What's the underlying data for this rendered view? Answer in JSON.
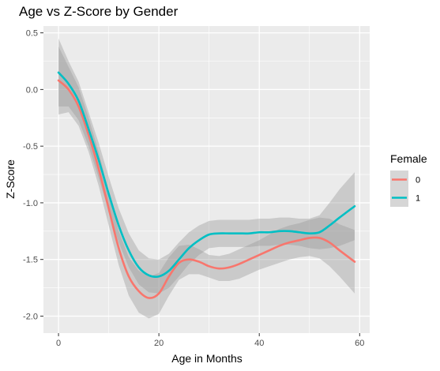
{
  "chart_data": {
    "type": "line",
    "title": "Age vs Z-Score by Gender",
    "xlabel": "Age in Months",
    "ylabel": "Z-Score",
    "xlim": [
      -3,
      62
    ],
    "ylim": [
      -2.15,
      0.56
    ],
    "x_ticks": [
      0,
      20,
      40,
      60
    ],
    "x_tick_labels": [
      "0",
      "20",
      "40",
      "60"
    ],
    "y_ticks": [
      0.5,
      0.0,
      -0.5,
      -1.0,
      -1.5,
      -2.0
    ],
    "y_tick_labels": [
      "0.5",
      "0.0",
      "-0.5",
      "-1.0",
      "-1.5",
      "-2.0"
    ],
    "grid": true,
    "legend_position": "right",
    "legend_title": "Female",
    "series": [
      {
        "name": "0",
        "color": "#F8766D",
        "x": [
          0,
          2,
          4,
          6,
          8,
          10,
          12,
          14,
          16,
          18,
          20,
          22,
          24,
          26,
          28,
          30,
          32,
          34,
          36,
          38,
          40,
          42,
          44,
          46,
          48,
          50,
          52,
          54,
          56,
          59
        ],
        "y": [
          0.08,
          0.0,
          -0.15,
          -0.4,
          -0.7,
          -1.05,
          -1.4,
          -1.65,
          -1.78,
          -1.84,
          -1.8,
          -1.65,
          -1.53,
          -1.5,
          -1.52,
          -1.56,
          -1.58,
          -1.57,
          -1.54,
          -1.5,
          -1.46,
          -1.42,
          -1.38,
          -1.35,
          -1.33,
          -1.31,
          -1.31,
          -1.35,
          -1.42,
          -1.52
        ],
        "ci_lower": [
          -0.22,
          -0.2,
          -0.32,
          -0.55,
          -0.85,
          -1.2,
          -1.55,
          -1.82,
          -1.97,
          -2.02,
          -1.98,
          -1.82,
          -1.68,
          -1.63,
          -1.63,
          -1.66,
          -1.69,
          -1.69,
          -1.67,
          -1.63,
          -1.59,
          -1.56,
          -1.53,
          -1.5,
          -1.48,
          -1.47,
          -1.49,
          -1.56,
          -1.65,
          -1.8
        ],
        "ci_upper": [
          0.38,
          0.2,
          0.02,
          -0.25,
          -0.55,
          -0.9,
          -1.25,
          -1.48,
          -1.6,
          -1.65,
          -1.62,
          -1.48,
          -1.38,
          -1.37,
          -1.41,
          -1.46,
          -1.47,
          -1.45,
          -1.41,
          -1.37,
          -1.33,
          -1.28,
          -1.23,
          -1.2,
          -1.18,
          -1.15,
          -1.13,
          -1.14,
          -1.19,
          -1.24
        ]
      },
      {
        "name": "1",
        "color": "#00BFC4",
        "x": [
          0,
          2,
          4,
          6,
          8,
          10,
          12,
          14,
          16,
          18,
          20,
          22,
          24,
          26,
          28,
          30,
          32,
          34,
          36,
          38,
          40,
          42,
          44,
          46,
          48,
          50,
          52,
          54,
          56,
          59
        ],
        "y": [
          0.15,
          0.05,
          -0.1,
          -0.35,
          -0.62,
          -0.92,
          -1.2,
          -1.42,
          -1.57,
          -1.64,
          -1.65,
          -1.6,
          -1.5,
          -1.4,
          -1.33,
          -1.28,
          -1.27,
          -1.27,
          -1.27,
          -1.27,
          -1.26,
          -1.26,
          -1.25,
          -1.25,
          -1.26,
          -1.27,
          -1.26,
          -1.2,
          -1.13,
          -1.03
        ],
        "ci_lower": [
          -0.15,
          -0.15,
          -0.27,
          -0.5,
          -0.78,
          -1.07,
          -1.35,
          -1.57,
          -1.72,
          -1.79,
          -1.8,
          -1.75,
          -1.65,
          -1.54,
          -1.46,
          -1.4,
          -1.39,
          -1.39,
          -1.39,
          -1.39,
          -1.38,
          -1.38,
          -1.37,
          -1.37,
          -1.38,
          -1.4,
          -1.41,
          -1.4,
          -1.38,
          -1.33
        ],
        "ci_upper": [
          0.45,
          0.25,
          0.07,
          -0.2,
          -0.47,
          -0.77,
          -1.05,
          -1.27,
          -1.42,
          -1.49,
          -1.5,
          -1.45,
          -1.35,
          -1.26,
          -1.2,
          -1.16,
          -1.15,
          -1.15,
          -1.15,
          -1.15,
          -1.14,
          -1.14,
          -1.13,
          -1.13,
          -1.14,
          -1.14,
          -1.11,
          -1.0,
          -0.88,
          -0.73
        ]
      }
    ]
  },
  "colors": {
    "panel_background": "#EBEBEB",
    "grid_major": "#FFFFFF",
    "ribbon_fill": "#999999"
  }
}
